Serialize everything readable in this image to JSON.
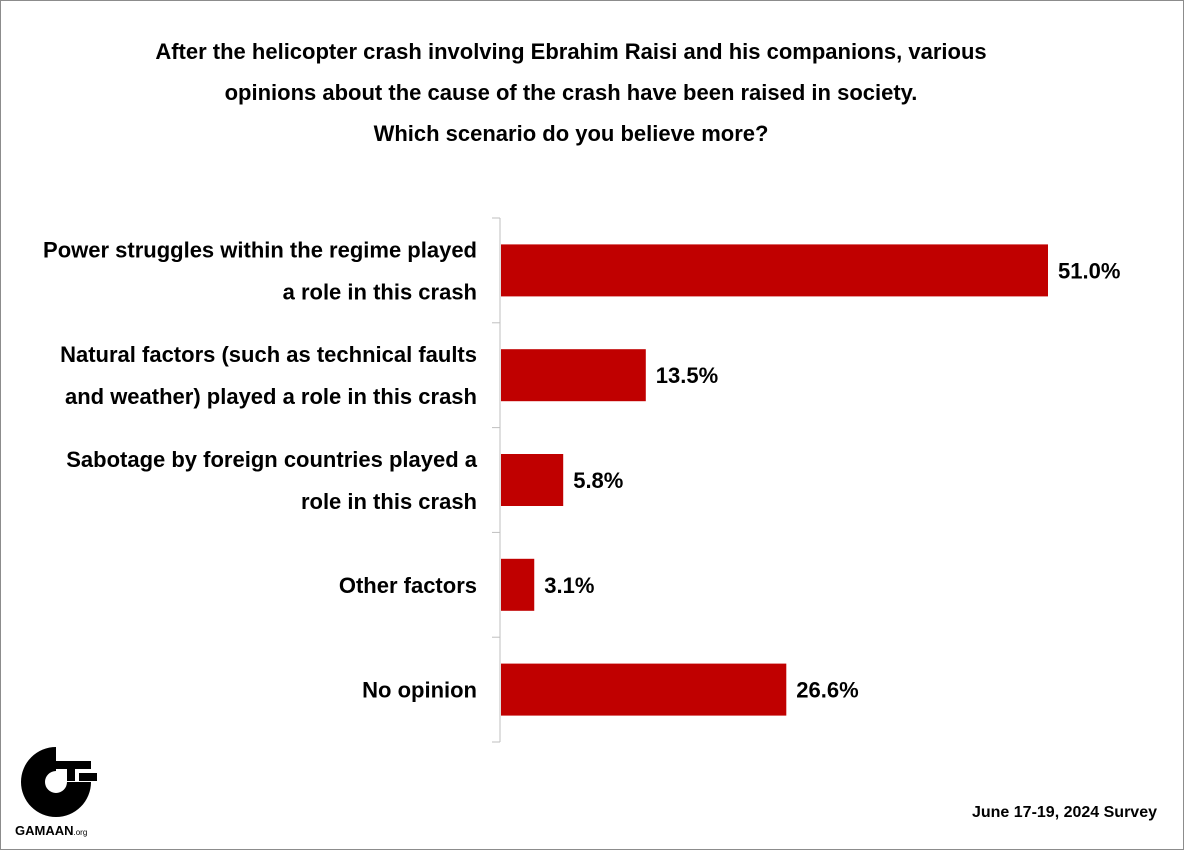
{
  "chart_data": {
    "type": "bar",
    "orientation": "horizontal",
    "title_lines": [
      "After the helicopter crash involving Ebrahim Raisi and his companions, various",
      "opinions about the cause of the crash have been raised in society.",
      "Which scenario do you believe more?"
    ],
    "categories": [
      [
        "Power struggles within the regime played",
        "a role in this crash"
      ],
      [
        "Natural factors (such as technical faults",
        "and weather) played a role in this crash"
      ],
      [
        "Sabotage by foreign countries played a",
        "role in this crash"
      ],
      [
        "Other factors"
      ],
      [
        "No opinion"
      ]
    ],
    "values": [
      51.0,
      13.5,
      5.8,
      3.1,
      26.6
    ],
    "value_labels": [
      "51.0%",
      "13.5%",
      "5.8%",
      "3.1%",
      "26.6%"
    ],
    "unit": "%",
    "bar_color": "#c00000",
    "xlim": [
      0,
      100
    ],
    "grid": false,
    "legend": "none"
  },
  "footer": {
    "survey_note": "June 17-19, 2024 Survey",
    "logo_text_main": "GAMAAN",
    "logo_text_suffix": ".org"
  }
}
